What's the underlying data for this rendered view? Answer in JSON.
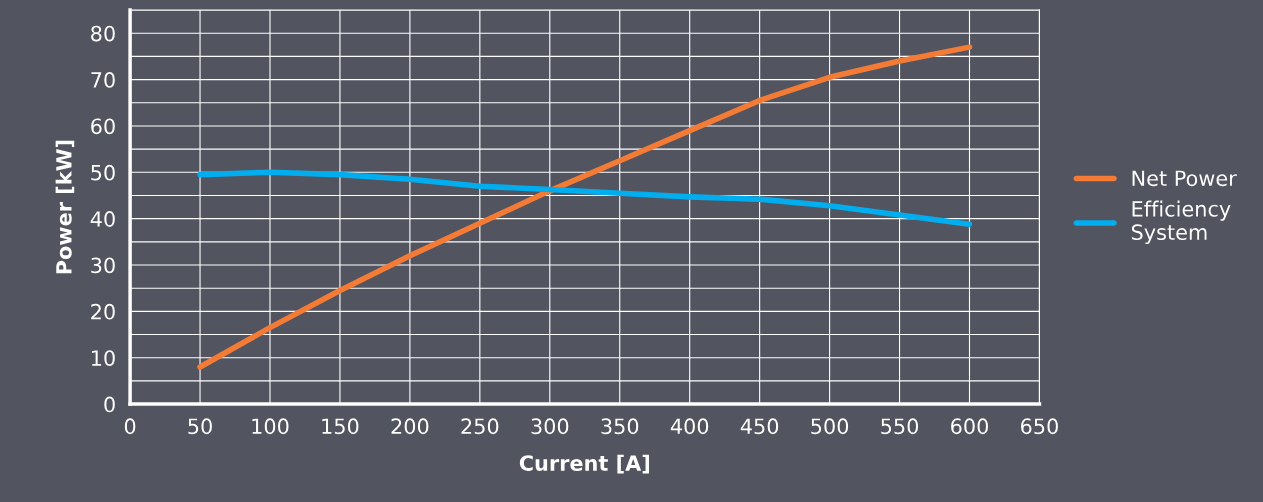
{
  "chart_data": {
    "type": "line",
    "xlabel": "Current [A]",
    "ylabel": "Power [kW]",
    "xlim": [
      0,
      650
    ],
    "xticks": [
      0,
      50,
      100,
      150,
      200,
      250,
      300,
      350,
      400,
      450,
      500,
      550,
      600,
      650
    ],
    "ylim": [
      0,
      85
    ],
    "yticks": [
      0,
      {
        "value": 5,
        "label": null
      },
      10,
      {
        "value": 15,
        "label": null
      },
      20,
      {
        "value": 25,
        "label": null
      },
      30,
      {
        "value": 35,
        "label": null
      },
      40,
      {
        "value": 45,
        "label": null
      },
      50,
      {
        "value": 55,
        "label": null
      },
      60,
      {
        "value": 65,
        "label": null
      },
      70,
      {
        "value": 75,
        "label": null
      },
      80,
      {
        "value": 85,
        "label": null
      }
    ],
    "x": [
      50,
      100,
      150,
      200,
      250,
      300,
      350,
      400,
      450,
      500,
      550,
      600
    ],
    "series": [
      {
        "name": "Net Power",
        "color": "#f47b35",
        "values": [
          8,
          16.5,
          24.5,
          32,
          39,
          46,
          52.5,
          59,
          65.5,
          70.5,
          74,
          77
        ]
      },
      {
        "name": "Efficiency\nSystem",
        "color": "#00aeef",
        "values": [
          49.5,
          50,
          49.5,
          48.5,
          47,
          46.3,
          45.5,
          44.7,
          44.2,
          42.8,
          40.8,
          38.8
        ]
      }
    ],
    "grid": true,
    "legend": "right",
    "marker": "none",
    "line_style": "solid"
  }
}
